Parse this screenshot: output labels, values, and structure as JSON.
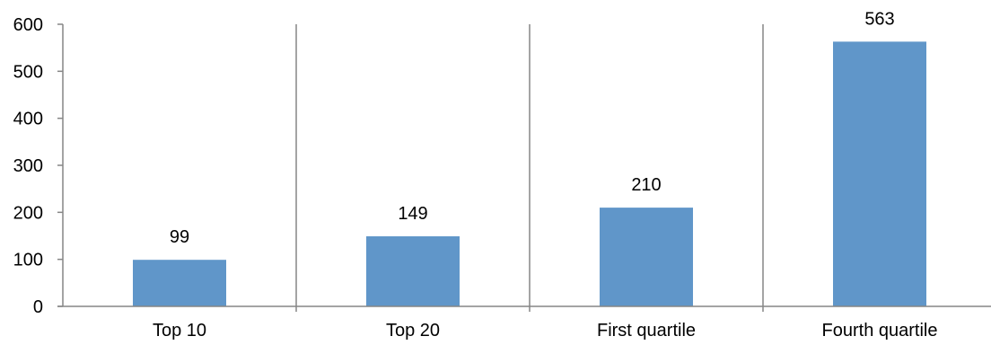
{
  "chart_data": {
    "type": "bar",
    "title": "",
    "xlabel": "",
    "ylabel": "",
    "categories": [
      "Top 10",
      "Top 20",
      "First quartile",
      "Fourth quartile"
    ],
    "values": [
      99,
      149,
      210,
      563
    ],
    "data_labels": [
      "99",
      "149",
      "210",
      "563"
    ],
    "ylim": [
      0,
      600
    ],
    "yticks": [
      0,
      100,
      200,
      300,
      400,
      500,
      600
    ],
    "ytick_labels": [
      "0",
      "100",
      "200",
      "300",
      "400",
      "500",
      "600"
    ],
    "grid": "vertical separators between categories",
    "legend": "none",
    "bar_color": "#6096C9",
    "axis_color": "#868686"
  }
}
